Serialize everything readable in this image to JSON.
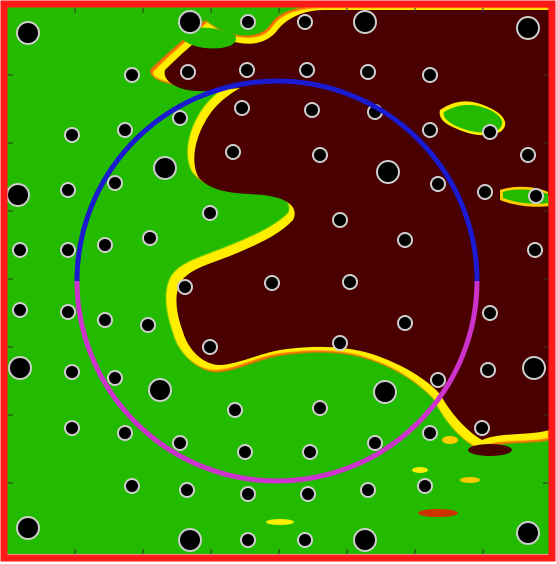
{
  "colors": {
    "frame": "#ff1a1a",
    "background_region": "#22bb00",
    "dark_region": "#4a0000",
    "edge_yellow": "#ffee00",
    "edge_orange": "#ff6a00",
    "circle_upper": "#1a1ad0",
    "circle_lower": "#cc33cc",
    "hole_fill": "#000000",
    "hole_ring": "#cfcfcf"
  },
  "icons": {
    "hole": "pore-icon"
  }
}
